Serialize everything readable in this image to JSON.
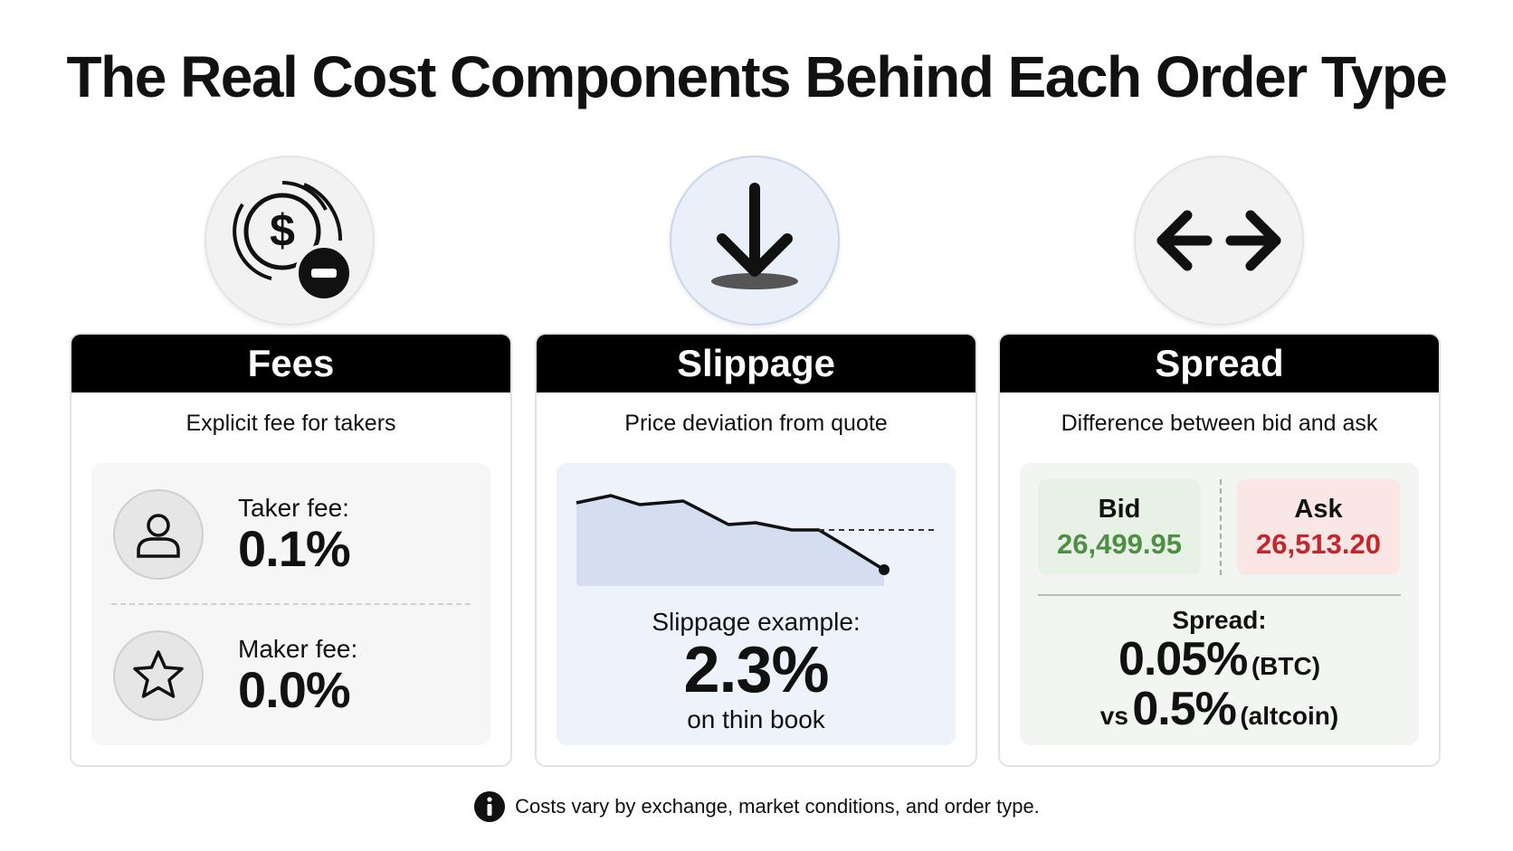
{
  "title": "The Real Cost Components Behind Each Order Type",
  "cards": [
    {
      "heading": "Fees",
      "description": "Explicit fee for takers",
      "items": [
        {
          "label": "Taker fee:",
          "value": "0.1%"
        },
        {
          "label": "Maker fee:",
          "value": "0.0%"
        }
      ]
    },
    {
      "heading": "Slippage",
      "description": "Price deviation from quote",
      "example_label": "Slippage example:",
      "example_value": "2.3%",
      "example_note": "on thin book"
    },
    {
      "heading": "Spread",
      "description": "Difference between bid and ask",
      "bid_label": "Bid",
      "bid_value": "26,499.95",
      "ask_label": "Ask",
      "ask_value": "26,513.20",
      "spread_label": "Spread:",
      "btc_value": "0.05%",
      "btc_note": "(BTC)",
      "vs": "vs",
      "altcoin_value": "0.5%",
      "altcoin_note": "(altcoin)"
    }
  ],
  "footnote": "Costs vary by exchange, market conditions, and order type."
}
